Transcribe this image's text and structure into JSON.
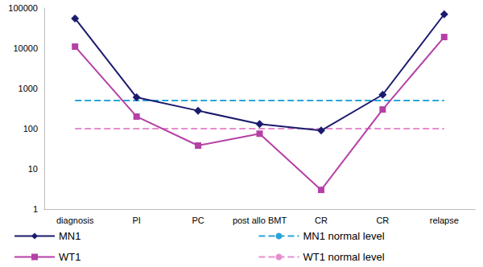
{
  "chart_data": {
    "type": "line",
    "categories": [
      "diagnosis",
      "PI",
      "PC",
      "post allo BMT",
      "CR",
      "CR",
      "relapse"
    ],
    "series": [
      {
        "name": "MN1",
        "color": "#1b1b6e",
        "marker": "diamond",
        "line_style": "solid",
        "values": [
          55000,
          600,
          280,
          130,
          90,
          700,
          70000
        ]
      },
      {
        "name": "WT1",
        "color": "#b540a6",
        "marker": "square",
        "line_style": "solid",
        "values": [
          11000,
          200,
          38,
          75,
          3,
          300,
          19000
        ]
      },
      {
        "name": "MN1 normal level",
        "color": "#2aa5dc",
        "marker": "none",
        "line_style": "dashed",
        "values": [
          500,
          500,
          500,
          500,
          500,
          500,
          500
        ]
      },
      {
        "name": "WT1 normal level",
        "color": "#e78ccf",
        "marker": "none",
        "line_style": "dashed",
        "values": [
          100,
          100,
          100,
          100,
          100,
          100,
          100
        ]
      }
    ],
    "log": "y",
    "ylim": [
      1,
      100000
    ],
    "yticks": [
      1,
      10,
      100,
      1000,
      10000,
      100000
    ],
    "grid": false,
    "legend": "bottom"
  }
}
